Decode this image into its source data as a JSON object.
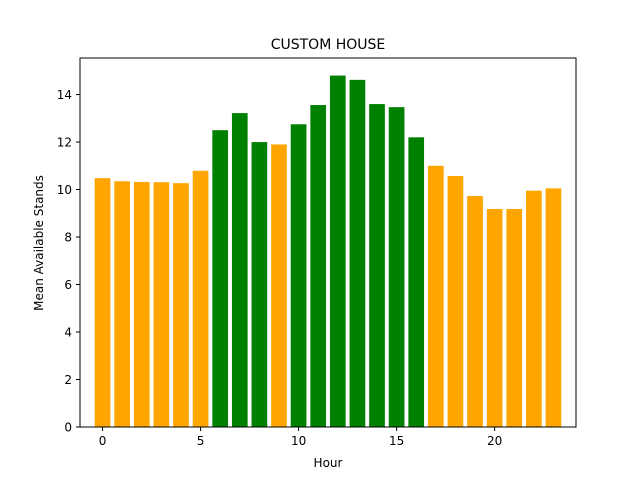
{
  "chart_data": {
    "type": "bar",
    "title": "CUSTOM HOUSE",
    "xlabel": "Hour",
    "ylabel": "Mean Available Stands",
    "x": [
      0,
      1,
      2,
      3,
      4,
      5,
      6,
      7,
      8,
      9,
      10,
      11,
      12,
      13,
      14,
      15,
      16,
      17,
      18,
      19,
      20,
      21,
      22,
      23
    ],
    "values": [
      10.48,
      10.35,
      10.32,
      10.31,
      10.27,
      10.79,
      12.5,
      13.22,
      12.0,
      11.9,
      12.75,
      13.56,
      14.8,
      14.62,
      13.6,
      13.47,
      12.2,
      11.0,
      10.57,
      9.73,
      9.18,
      9.18,
      9.95,
      10.05
    ],
    "bar_colors": [
      "#ffa500",
      "#ffa500",
      "#ffa500",
      "#ffa500",
      "#ffa500",
      "#ffa500",
      "#008000",
      "#008000",
      "#008000",
      "#ffa500",
      "#008000",
      "#008000",
      "#008000",
      "#008000",
      "#008000",
      "#008000",
      "#008000",
      "#ffa500",
      "#ffa500",
      "#ffa500",
      "#ffa500",
      "#ffa500",
      "#ffa500",
      "#ffa500"
    ],
    "xticks": [
      0,
      5,
      10,
      15,
      20
    ],
    "yticks": [
      0,
      2,
      4,
      6,
      8,
      10,
      12,
      14
    ],
    "xlim": [
      -1.15,
      24.15
    ],
    "ylim": [
      0,
      15.54
    ],
    "grid": false,
    "legend": false
  },
  "colors": {
    "orange": "#ffa500",
    "green": "#008000",
    "axis": "#000000",
    "background": "#ffffff"
  }
}
